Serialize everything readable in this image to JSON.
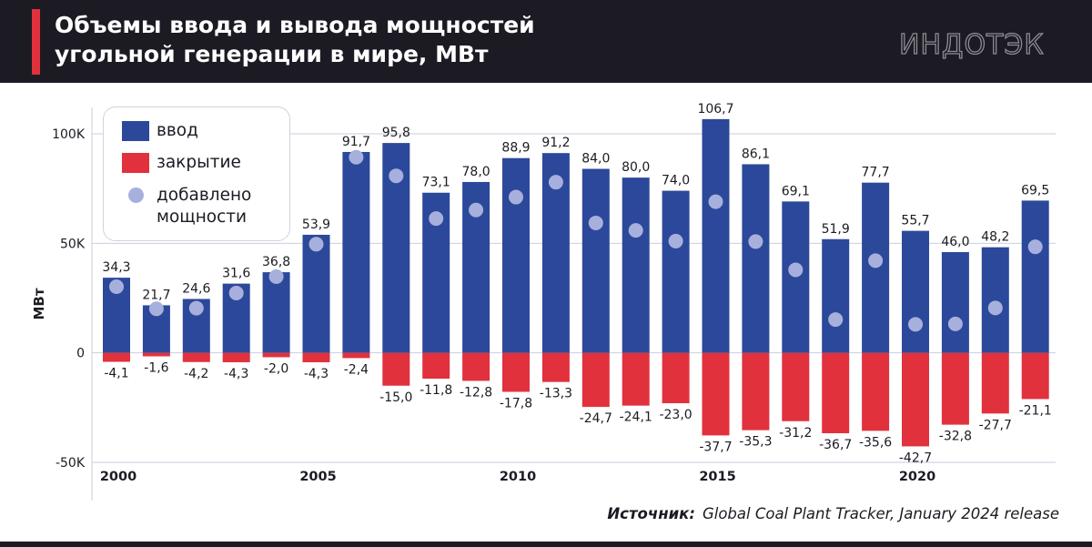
{
  "header": {
    "title_line1": "Объемы ввода и вывода мощностей",
    "title_line2": "угольной генерации в мире, МВт",
    "logo_text": "ИНДОТЭК"
  },
  "source": {
    "label": "Источник:",
    "text": "Global Coal Plant Tracker, January 2024 release"
  },
  "legend": {
    "items": [
      {
        "label": "ввод",
        "color": "#2c489a",
        "shape": "square"
      },
      {
        "label": "закрытие",
        "color": "#e1313d",
        "shape": "square"
      },
      {
        "label_line1": "добавлено",
        "label_line2": "мощности",
        "color": "#a7b0dc",
        "shape": "circle"
      }
    ]
  },
  "colors": {
    "input": "#2c489a",
    "closure": "#e1313d",
    "net_dot": "#a7b0dc",
    "grid": "#c9cede",
    "accent": "#e1313d"
  },
  "chart_data": {
    "type": "bar",
    "ylabel": "МВт",
    "ylim": [
      -50000,
      100000
    ],
    "yticks": [
      {
        "value": 100000,
        "label": "100K"
      },
      {
        "value": 50000,
        "label": "50K"
      },
      {
        "value": 0,
        "label": "0"
      },
      {
        "value": -50000,
        "label": "-50K"
      }
    ],
    "x": [
      2000,
      2001,
      2002,
      2003,
      2004,
      2005,
      2006,
      2007,
      2008,
      2009,
      2010,
      2011,
      2012,
      2013,
      2014,
      2015,
      2016,
      2017,
      2018,
      2019,
      2020,
      2021,
      2022,
      2023
    ],
    "xtick_labels": {
      "2000": "2000",
      "2005": "2005",
      "2010": "2010",
      "2015": "2015",
      "2020": "2020"
    },
    "grid": true,
    "legend_position": "top-left",
    "series": [
      {
        "name": "ввод",
        "values": [
          34300,
          21700,
          24600,
          31600,
          36800,
          53900,
          91700,
          95800,
          73100,
          78000,
          88900,
          91200,
          84000,
          80000,
          74000,
          106700,
          86100,
          69100,
          51900,
          77700,
          55700,
          46000,
          48200,
          69500
        ],
        "labels": [
          "34,3",
          "21,7",
          "24,6",
          "31,6",
          "36,8",
          "53,9",
          "91,7",
          "95,8",
          "73,1",
          "78,0",
          "88,9",
          "91,2",
          "84,0",
          "80,0",
          "74,0",
          "106,7",
          "86,1",
          "69,1",
          "51,9",
          "77,7",
          "55,7",
          "46,0",
          "48,2",
          "69,5"
        ]
      },
      {
        "name": "закрытие",
        "values": [
          -4100,
          -1600,
          -4200,
          -4300,
          -2000,
          -4300,
          -2400,
          -15000,
          -11800,
          -12800,
          -17800,
          -13300,
          -24700,
          -24100,
          -23000,
          -37700,
          -35300,
          -31200,
          -36700,
          -35600,
          -42700,
          -32800,
          -27700,
          -21100
        ],
        "labels": [
          "-4,1",
          "-1,6",
          "-4,2",
          "-4,3",
          "-2,0",
          "-4,3",
          "-2,4",
          "-15,0",
          "-11,8",
          "-12,8",
          "-17,8",
          "-13,3",
          "-24,7",
          "-24,1",
          "-23,0",
          "-37,7",
          "-35,3",
          "-31,2",
          "-36,7",
          "-35,6",
          "-42,7",
          "-32,8",
          "-27,7",
          "-21,1"
        ]
      },
      {
        "name": "добавлено мощности",
        "values": [
          30200,
          20100,
          20400,
          27300,
          34800,
          49600,
          89300,
          80800,
          61300,
          65200,
          71100,
          77900,
          59300,
          55900,
          51000,
          69000,
          50800,
          37900,
          15200,
          42100,
          13000,
          13200,
          20500,
          48400
        ]
      }
    ]
  }
}
